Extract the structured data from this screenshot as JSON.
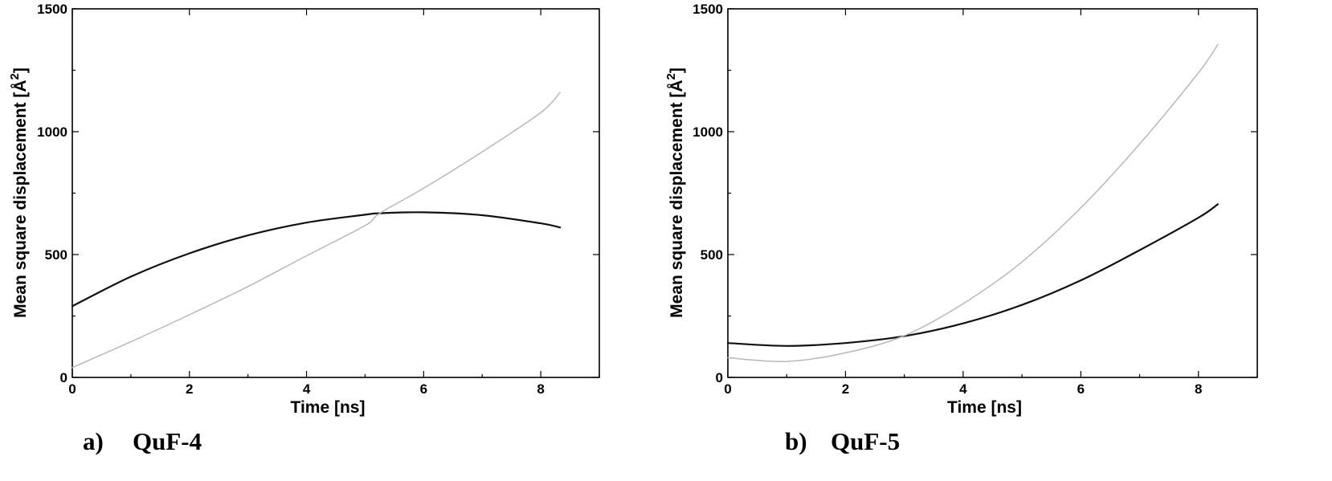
{
  "chart_data": [
    {
      "type": "line",
      "caption_letter": "a)",
      "caption_name": "QuF-4",
      "xlabel": "Time [ns]",
      "ylabel": "Mean square displacement [Å²]",
      "xlim": [
        0,
        9
      ],
      "ylim": [
        0,
        1500
      ],
      "xticks": [
        0,
        2,
        4,
        6,
        8
      ],
      "yticks": [
        0,
        500,
        1000,
        1500
      ],
      "grid": false,
      "series": [
        {
          "color": "#111111",
          "x": [
            0,
            1,
            2,
            3,
            4,
            5,
            5.25,
            6,
            7,
            8,
            8.33
          ],
          "y": [
            290,
            410,
            505,
            578,
            630,
            662,
            668,
            672,
            660,
            627,
            610
          ]
        },
        {
          "color": "#b8b8b8",
          "x": [
            0,
            1,
            2,
            3,
            4,
            5,
            5.25,
            6,
            7,
            8,
            8.33
          ],
          "y": [
            40,
            145,
            255,
            370,
            495,
            618,
            668,
            770,
            918,
            1078,
            1160
          ]
        }
      ]
    },
    {
      "type": "line",
      "caption_letter": "b)",
      "caption_name": "QuF-5",
      "xlabel": "Time [ns]",
      "ylabel": "Mean square displacement [Å²]",
      "xlim": [
        0,
        9
      ],
      "ylim": [
        0,
        1500
      ],
      "xticks": [
        0,
        2,
        4,
        6,
        8
      ],
      "yticks": [
        0,
        500,
        1000,
        1500
      ],
      "grid": false,
      "series": [
        {
          "color": "#111111",
          "x": [
            0,
            1,
            2,
            3,
            4,
            5,
            6,
            7,
            8,
            8.33
          ],
          "y": [
            140,
            128,
            140,
            168,
            220,
            295,
            395,
            518,
            650,
            705
          ]
        },
        {
          "color": "#b8b8b8",
          "x": [
            0,
            1,
            2,
            3,
            4,
            5,
            6,
            7,
            8,
            8.33
          ],
          "y": [
            80,
            65,
            100,
            170,
            300,
            470,
            690,
            950,
            1240,
            1355
          ]
        }
      ]
    }
  ]
}
